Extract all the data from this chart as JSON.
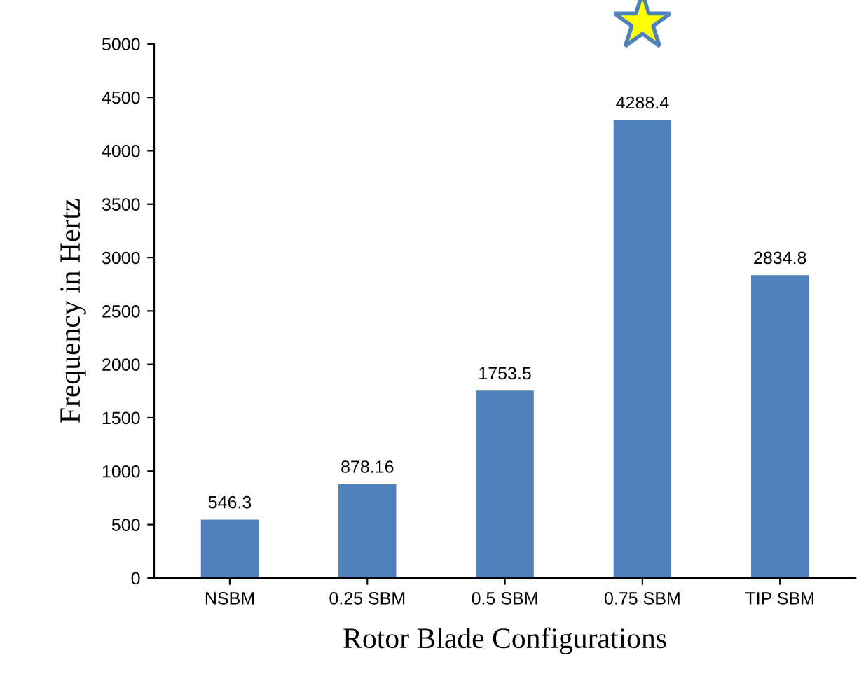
{
  "chart_data": {
    "type": "bar",
    "xlabel": "Rotor Blade Configurations",
    "ylabel": "Frequency in Hertz",
    "categories": [
      "NSBM",
      "0.25 SBM",
      "0.5 SBM",
      "0.75 SBM",
      "TIP SBM"
    ],
    "values": [
      546.3,
      878.16,
      1753.5,
      4288.4,
      2834.8
    ],
    "value_labels": [
      "546.3",
      "878.16",
      "1753.5",
      "4288.4",
      "2834.8"
    ],
    "color": "#4f81bd",
    "ylim": [
      0,
      5000
    ],
    "yticks": [
      0,
      500,
      1000,
      1500,
      2000,
      2500,
      3000,
      3500,
      4000,
      4500,
      5000
    ],
    "grid": false,
    "legend": false
  }
}
